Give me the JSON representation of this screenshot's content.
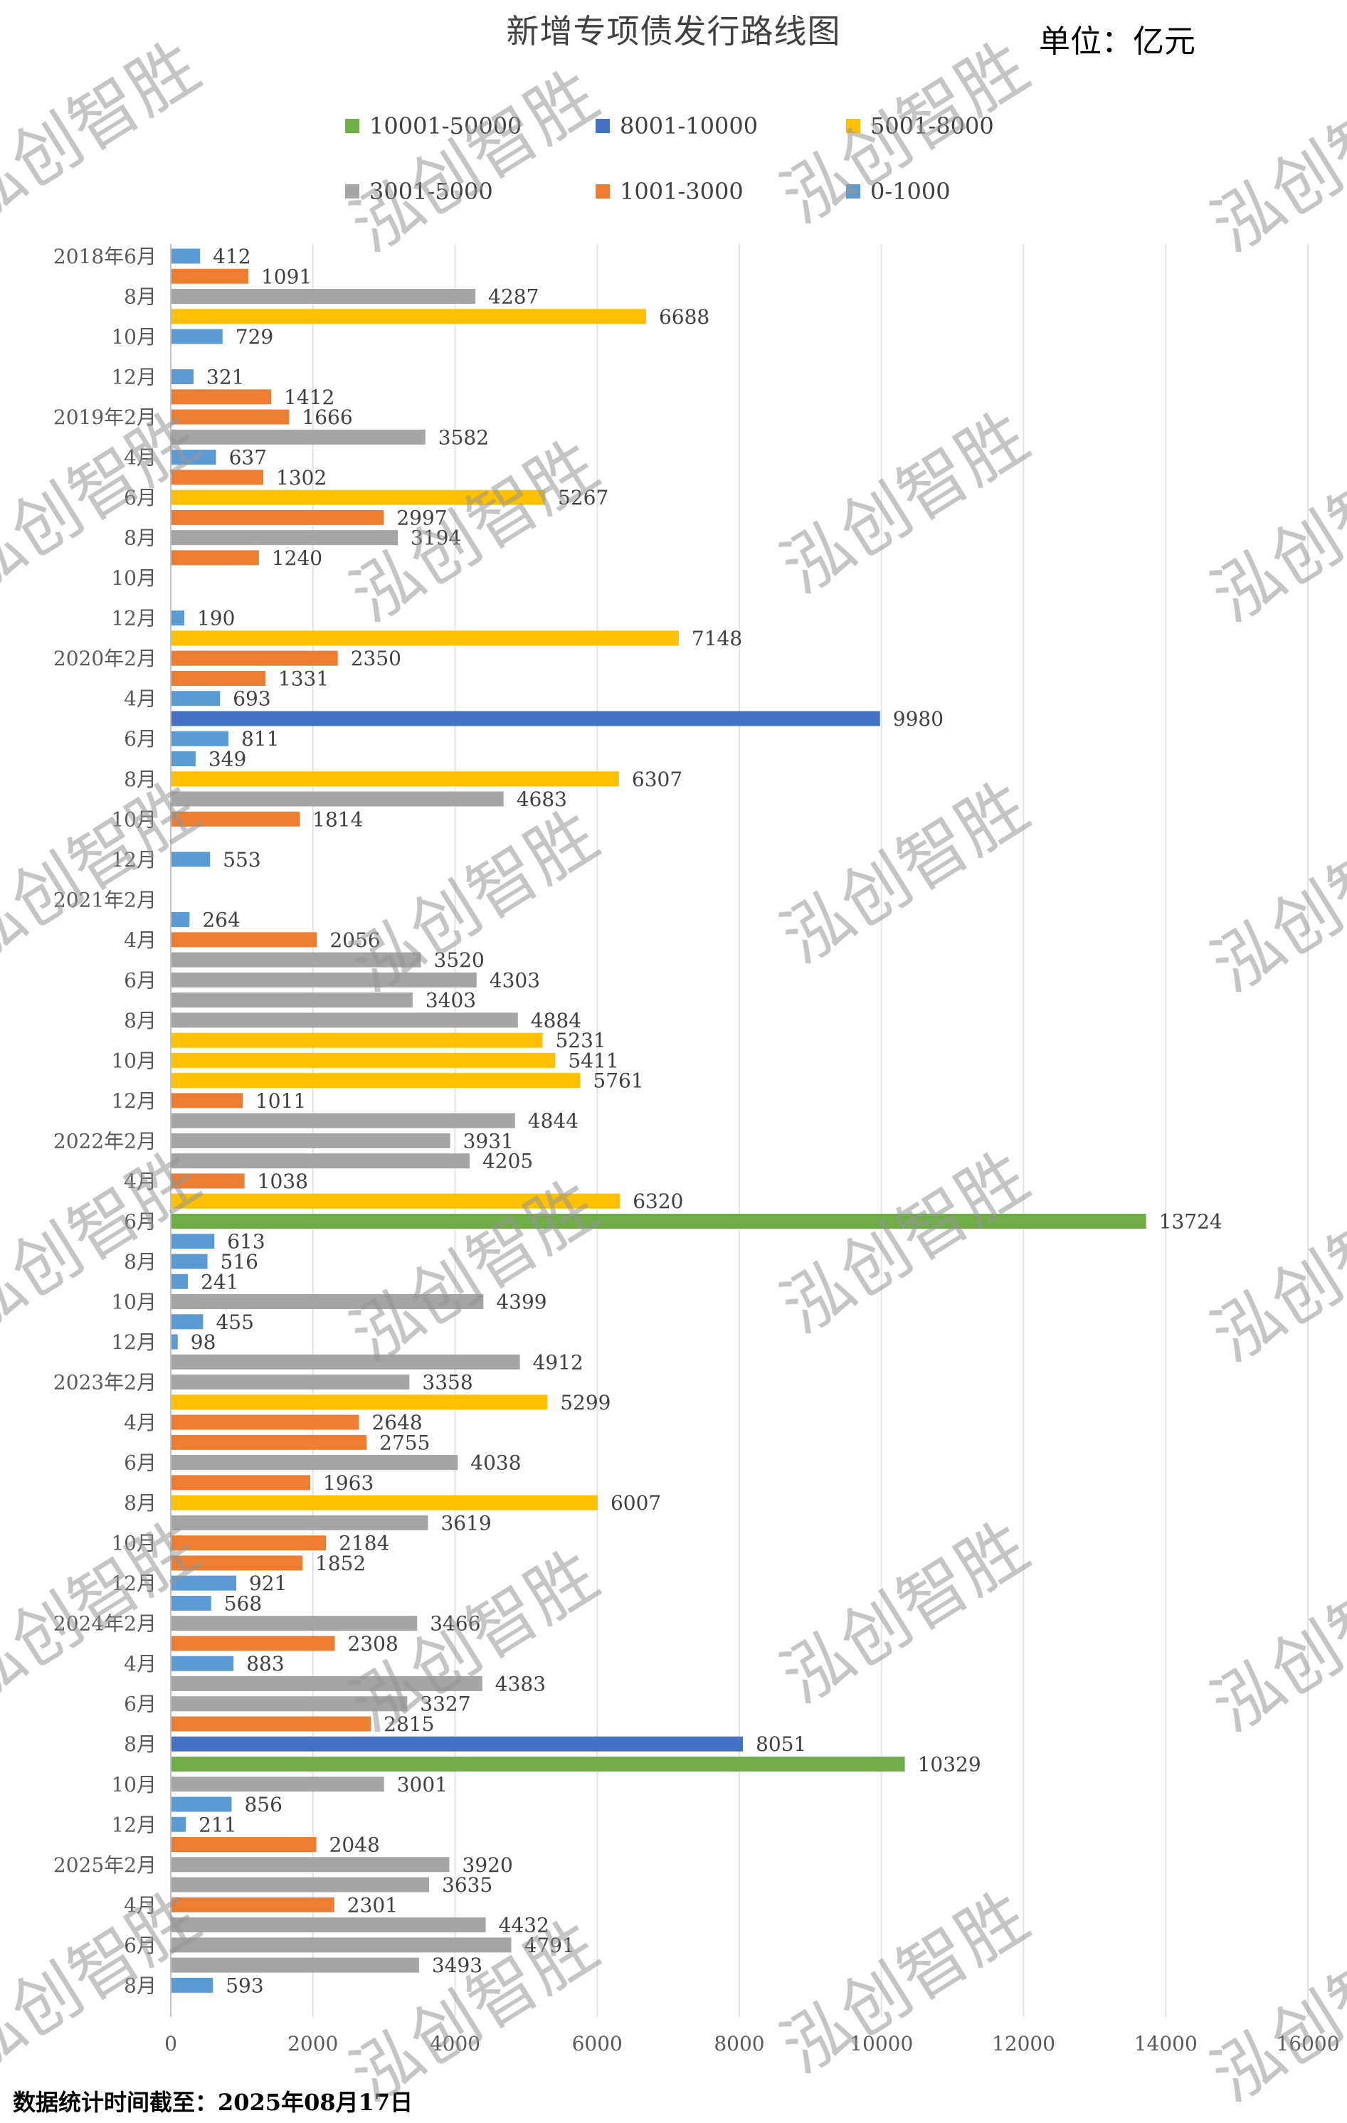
{
  "watermark": "泓创智胜",
  "footer": "数据统计时间截至：2025年08月17日",
  "chart_data": {
    "type": "bar",
    "orientation": "horizontal",
    "title": "新增专项债发行路线图",
    "unit_label": "单位：亿元",
    "xlabel": "",
    "ylabel": "",
    "xlim": [
      0,
      16000
    ],
    "xticks": [
      0,
      2000,
      4000,
      6000,
      8000,
      10000,
      12000,
      14000,
      16000
    ],
    "grid": true,
    "legend_position": "top",
    "legend": [
      {
        "label": "10001-50000",
        "color": "#70AD47",
        "min": 10001
      },
      {
        "label": "8001-10000",
        "color": "#4472C4",
        "min": 8001
      },
      {
        "label": "5001-8000",
        "color": "#FFC000",
        "min": 5001
      },
      {
        "label": "3001-5000",
        "color": "#A5A5A5",
        "min": 3001
      },
      {
        "label": "1001-3000",
        "color": "#ED7D31",
        "min": 1001
      },
      {
        "label": "0-1000",
        "color": "#5B9BD5",
        "min": 0
      }
    ],
    "categories": [
      "2018年6月",
      "",
      "8月",
      "",
      "10月",
      "",
      "12月",
      "",
      "2019年2月",
      "",
      "4月",
      "",
      "6月",
      "",
      "8月",
      "",
      "10月",
      "",
      "12月",
      "",
      "2020年2月",
      "",
      "4月",
      "",
      "6月",
      "",
      "8月",
      "",
      "10月",
      "",
      "12月",
      "",
      "2021年2月",
      "",
      "4月",
      "",
      "6月",
      "",
      "8月",
      "",
      "10月",
      "",
      "12月",
      "",
      "2022年2月",
      "",
      "4月",
      "",
      "6月",
      "",
      "8月",
      "",
      "10月",
      "",
      "12月",
      "",
      "2023年2月",
      "",
      "4月",
      "",
      "6月",
      "",
      "8月",
      "",
      "10月",
      "",
      "12月",
      "",
      "2024年2月",
      "",
      "4月",
      "",
      "6月",
      "",
      "8月",
      "",
      "10月",
      "",
      "12月",
      "",
      "2025年2月",
      "",
      "4月",
      "",
      "6月",
      "",
      "8月"
    ],
    "values": [
      412,
      1091,
      4287,
      6688,
      729,
      null,
      321,
      1412,
      1666,
      3582,
      637,
      1302,
      5267,
      2997,
      3194,
      1240,
      null,
      null,
      190,
      7148,
      2350,
      1331,
      693,
      9980,
      811,
      349,
      6307,
      4683,
      1814,
      null,
      553,
      null,
      null,
      264,
      2056,
      3520,
      4303,
      3403,
      4884,
      5231,
      5411,
      5761,
      1011,
      4844,
      3931,
      4205,
      1038,
      6320,
      13724,
      613,
      516,
      241,
      4399,
      455,
      98,
      4912,
      3358,
      5299,
      2648,
      2755,
      4038,
      1963,
      6007,
      3619,
      2184,
      1852,
      921,
      568,
      3466,
      2308,
      883,
      4383,
      3327,
      2815,
      8051,
      10329,
      3001,
      856,
      211,
      2048,
      3920,
      3635,
      2301,
      4432,
      4791,
      3493,
      593
    ]
  }
}
